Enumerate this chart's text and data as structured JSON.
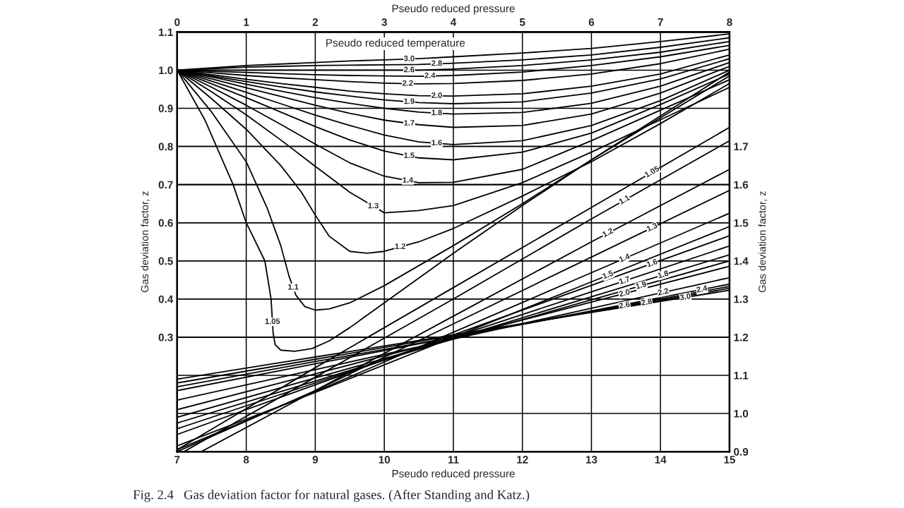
{
  "chart_data": {
    "type": "line",
    "annotations": [
      "Pseudo reduced temperature",
      "Fig. 2.4   Gas deviation factor for natural gases. (After Standing and Katz.)"
    ],
    "xlabel": "Pseudo reduced pressure",
    "x2label": "Pseudo reduced pressure",
    "ylabel": "Gas deviation factor, z",
    "y2label": "Gas deviation factor, z",
    "xlim": [
      7,
      15
    ],
    "xticks": [
      7,
      8,
      9,
      10,
      11,
      12,
      13,
      14,
      15
    ],
    "x2lim": [
      0,
      8
    ],
    "x2ticks": [
      0,
      1,
      2,
      3,
      4,
      5,
      6,
      7,
      8
    ],
    "ylim": [
      0,
      1.1
    ],
    "yticks": [
      0.3,
      0.4,
      0.5,
      0.6,
      0.7,
      0.8,
      0.9,
      {
        "value": 1.0,
        "label": "1.0"
      },
      1.1
    ],
    "y2lim": [
      0.9,
      2.0
    ],
    "y2ticks": [
      0.9,
      {
        "value": 1.0,
        "label": "1.0"
      },
      1.1,
      1.2,
      1.3,
      1.4,
      1.5,
      1.6,
      1.7
    ],
    "grid": true,
    "series": [
      {
        "name": "3.0",
        "color": "#000000",
        "axis": "x2",
        "x": [
          0,
          0.5,
          1,
          1.5,
          2,
          2.5,
          3,
          3.5,
          4,
          5,
          6,
          7,
          8
        ],
        "values": [
          1.0,
          1.006,
          1.012,
          1.016,
          1.02,
          1.024,
          1.027,
          1.03,
          1.035,
          1.045,
          1.057,
          1.075,
          1.095
        ]
      },
      {
        "name": "2.8",
        "color": "#000000",
        "axis": "x2",
        "x": [
          0,
          0.5,
          1,
          1.5,
          2,
          2.5,
          3,
          3.5,
          4,
          5,
          6,
          7,
          8
        ],
        "values": [
          1.0,
          1.004,
          1.008,
          1.01,
          1.012,
          1.013,
          1.014,
          1.015,
          1.018,
          1.027,
          1.04,
          1.06,
          1.085
        ]
      },
      {
        "name": "2.6",
        "color": "#000000",
        "axis": "x2",
        "x": [
          0,
          0.5,
          1,
          1.5,
          2,
          2.5,
          3,
          3.5,
          4,
          5,
          6,
          7,
          8
        ],
        "values": [
          1.0,
          1.0,
          1.0,
          1.0,
          1.0,
          1.0,
          1.0,
          1.0,
          1.003,
          1.012,
          1.027,
          1.047,
          1.075
        ]
      },
      {
        "name": "2.4",
        "color": "#000000",
        "axis": "x2",
        "x": [
          0,
          0.5,
          1,
          1.5,
          2,
          2.5,
          3,
          3.5,
          4,
          5,
          6,
          7,
          8
        ],
        "values": [
          1.0,
          0.997,
          0.994,
          0.991,
          0.988,
          0.986,
          0.985,
          0.984,
          0.986,
          0.995,
          1.012,
          1.035,
          1.065
        ]
      },
      {
        "name": "2.2",
        "color": "#000000",
        "axis": "x2",
        "x": [
          0,
          0.5,
          1,
          1.5,
          2,
          2.5,
          3,
          3.5,
          4,
          5,
          6,
          7,
          8
        ],
        "values": [
          1.0,
          0.993,
          0.986,
          0.98,
          0.975,
          0.97,
          0.966,
          0.964,
          0.965,
          0.973,
          0.99,
          1.017,
          1.055
        ]
      },
      {
        "name": "2.0",
        "color": "#000000",
        "axis": "x2",
        "x": [
          0,
          0.5,
          1,
          1.5,
          2,
          2.5,
          3,
          3.5,
          4,
          5,
          6,
          7,
          8
        ],
        "values": [
          1.0,
          0.988,
          0.976,
          0.965,
          0.955,
          0.945,
          0.938,
          0.933,
          0.932,
          0.938,
          0.958,
          0.99,
          1.04
        ]
      },
      {
        "name": "1.9",
        "color": "#000000",
        "axis": "x2",
        "x": [
          0,
          0.5,
          1,
          1.5,
          2,
          2.5,
          3,
          3.5,
          4,
          5,
          6,
          7,
          8
        ],
        "values": [
          1.0,
          0.985,
          0.97,
          0.956,
          0.943,
          0.932,
          0.922,
          0.915,
          0.912,
          0.917,
          0.94,
          0.977,
          1.03
        ]
      },
      {
        "name": "1.8",
        "color": "#000000",
        "axis": "x2",
        "x": [
          0,
          0.5,
          1,
          1.5,
          2,
          2.5,
          3,
          3.5,
          4,
          5,
          6,
          7,
          8
        ],
        "values": [
          1.0,
          0.982,
          0.963,
          0.945,
          0.928,
          0.913,
          0.9,
          0.89,
          0.885,
          0.889,
          0.913,
          0.958,
          1.02
        ]
      },
      {
        "name": "1.7",
        "color": "#000000",
        "axis": "x2",
        "x": [
          0,
          0.5,
          1,
          1.5,
          2,
          2.5,
          3,
          3.5,
          4,
          5,
          6,
          7,
          8
        ],
        "values": [
          1.0,
          0.977,
          0.954,
          0.931,
          0.908,
          0.887,
          0.869,
          0.857,
          0.85,
          0.855,
          0.885,
          0.94,
          1.01
        ]
      },
      {
        "name": "1.6",
        "color": "#000000",
        "axis": "x2",
        "x": [
          0,
          0.5,
          1,
          1.5,
          2,
          2.5,
          3,
          3.5,
          4,
          5,
          6,
          7,
          8
        ],
        "values": [
          1.0,
          0.971,
          0.942,
          0.912,
          0.882,
          0.855,
          0.83,
          0.812,
          0.805,
          0.815,
          0.855,
          0.92,
          1.0
        ]
      },
      {
        "name": "1.5",
        "color": "#000000",
        "axis": "x2",
        "x": [
          0,
          0.5,
          1,
          1.5,
          2,
          2.5,
          3,
          3.5,
          4,
          5,
          6,
          7,
          8
        ],
        "values": [
          1.0,
          0.964,
          0.928,
          0.89,
          0.852,
          0.817,
          0.788,
          0.77,
          0.765,
          0.785,
          0.835,
          0.91,
          0.99
        ]
      },
      {
        "name": "1.4",
        "color": "#000000",
        "axis": "x2",
        "x": [
          0,
          0.5,
          1,
          1.5,
          2,
          2.5,
          3,
          3.5,
          4,
          5,
          6,
          7,
          8
        ],
        "values": [
          1.0,
          0.955,
          0.908,
          0.858,
          0.806,
          0.757,
          0.722,
          0.705,
          0.706,
          0.74,
          0.815,
          0.895,
          0.975
        ]
      },
      {
        "name": "1.3",
        "color": "#000000",
        "axis": "x2",
        "x": [
          0,
          0.5,
          1,
          1.5,
          2,
          2.5,
          3,
          3.5,
          4,
          5,
          6,
          7,
          8
        ],
        "values": [
          1.0,
          0.943,
          0.883,
          0.817,
          0.748,
          0.68,
          0.626,
          0.632,
          0.645,
          0.705,
          0.785,
          0.87,
          0.955
        ]
      },
      {
        "name": "1.2",
        "color": "#000000",
        "axis": "x2",
        "x": [
          0,
          0.5,
          1,
          1.5,
          1.8,
          2,
          2.2,
          2.5,
          2.75,
          3,
          3.5,
          4,
          5,
          6,
          7,
          8
        ],
        "values": [
          1.0,
          0.925,
          0.845,
          0.75,
          0.68,
          0.62,
          0.565,
          0.525,
          0.52,
          0.525,
          0.55,
          0.585,
          0.67,
          0.76,
          0.86,
          0.965
        ]
      },
      {
        "name": "1.1",
        "color": "#000000",
        "axis": "x2",
        "x": [
          0,
          0.5,
          1,
          1.3,
          1.5,
          1.62,
          1.72,
          1.85,
          2.0,
          2.2,
          2.5,
          3,
          4,
          5,
          6,
          7,
          8
        ],
        "values": [
          1.0,
          0.89,
          0.76,
          0.64,
          0.54,
          0.46,
          0.41,
          0.38,
          0.371,
          0.374,
          0.39,
          0.435,
          0.54,
          0.65,
          0.765,
          0.875,
          0.985
        ]
      },
      {
        "name": "1.05",
        "color": "#000000",
        "axis": "x2",
        "x": [
          0,
          0.4,
          0.81,
          1.0,
          1.27,
          1.36,
          1.39,
          1.42,
          1.5,
          1.7,
          1.95,
          2.2,
          2.5,
          3,
          4,
          5,
          6,
          7,
          8
        ],
        "values": [
          1.0,
          0.87,
          0.7,
          0.6,
          0.5,
          0.4,
          0.31,
          0.28,
          0.266,
          0.263,
          0.27,
          0.29,
          0.325,
          0.39,
          0.52,
          0.645,
          0.765,
          0.88,
          0.995
        ]
      },
      {
        "name": "1.05",
        "color": "#000000",
        "axis": "y2",
        "x": [
          7,
          9,
          11,
          13,
          15
        ],
        "values": [
          0.905,
          1.12,
          1.33,
          1.54,
          1.75
        ]
      },
      {
        "name": "1.1",
        "color": "#000000",
        "axis": "y2",
        "x": [
          7.1,
          9,
          11,
          13,
          15
        ],
        "values": [
          0.9,
          1.095,
          1.3,
          1.51,
          1.715
        ]
      },
      {
        "name": "1.2",
        "color": "#000000",
        "axis": "y2",
        "x": [
          7.35,
          9,
          11,
          13,
          15
        ],
        "values": [
          0.9,
          1.06,
          1.255,
          1.45,
          1.64
        ]
      },
      {
        "name": "1.3",
        "color": "#000000",
        "axis": "y2",
        "x": [
          7,
          9,
          11,
          13,
          15
        ],
        "values": [
          0.9,
          1.06,
          1.235,
          1.41,
          1.585
        ]
      },
      {
        "name": "1.4",
        "color": "#000000",
        "axis": "y2",
        "x": [
          7,
          9,
          11,
          13,
          15
        ],
        "values": [
          0.905,
          1.057,
          1.213,
          1.369,
          1.525
        ]
      },
      {
        "name": "1.5",
        "color": "#000000",
        "axis": "y2",
        "x": [
          7,
          9,
          11,
          13,
          15
        ],
        "values": [
          0.915,
          1.055,
          1.2,
          1.345,
          1.49
        ]
      },
      {
        "name": "1.6",
        "color": "#000000",
        "axis": "y2",
        "x": [
          7,
          9,
          11,
          13,
          15
        ],
        "values": [
          0.945,
          1.075,
          1.206,
          1.336,
          1.466
        ]
      },
      {
        "name": "1.7",
        "color": "#000000",
        "axis": "y2",
        "x": [
          7,
          9,
          11,
          13,
          15
        ],
        "values": [
          0.96,
          1.08,
          1.2,
          1.319,
          1.439
        ]
      },
      {
        "name": "1.8",
        "color": "#000000",
        "axis": "y2",
        "x": [
          7,
          9,
          11,
          13,
          15
        ],
        "values": [
          0.975,
          1.085,
          1.196,
          1.306,
          1.416
        ]
      },
      {
        "name": "1.9",
        "color": "#000000",
        "axis": "y2",
        "x": [
          7,
          9,
          11,
          13,
          15
        ],
        "values": [
          0.99,
          1.093,
          1.195,
          1.298,
          1.4
        ]
      },
      {
        "name": "2.0",
        "color": "#000000",
        "axis": "y2",
        "x": [
          7,
          9,
          11,
          13,
          15
        ],
        "values": [
          1.01,
          1.104,
          1.198,
          1.292,
          1.386
        ]
      },
      {
        "name": "2.2",
        "color": "#000000",
        "axis": "y2",
        "x": [
          7,
          9,
          11,
          13,
          15
        ],
        "values": [
          1.035,
          1.115,
          1.195,
          1.276,
          1.356
        ]
      },
      {
        "name": "2.4",
        "color": "#000000",
        "axis": "y2",
        "x": [
          7,
          9,
          11,
          13,
          15
        ],
        "values": [
          1.06,
          1.13,
          1.2,
          1.269,
          1.339
        ]
      },
      {
        "name": "2.6",
        "color": "#000000",
        "axis": "y2",
        "x": [
          7,
          9,
          11,
          13,
          15
        ],
        "values": [
          1.07,
          1.136,
          1.2,
          1.267,
          1.333
        ]
      },
      {
        "name": "2.8",
        "color": "#000000",
        "axis": "y2",
        "x": [
          7,
          9,
          11,
          13,
          15
        ],
        "values": [
          1.08,
          1.142,
          1.204,
          1.266,
          1.328
        ]
      },
      {
        "name": "3.0",
        "color": "#000000",
        "axis": "y2",
        "x": [
          7,
          9,
          11,
          13,
          15
        ],
        "values": [
          1.09,
          1.148,
          1.206,
          1.265,
          1.323
        ]
      }
    ]
  }
}
